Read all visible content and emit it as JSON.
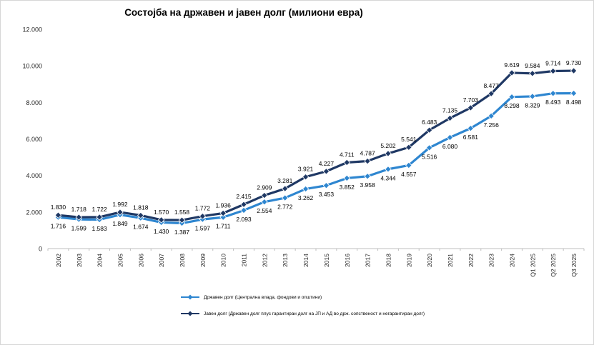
{
  "title": "Состојба на државен и јавен долг (милиони евра)",
  "chart_data": {
    "type": "line",
    "categories": [
      "2002",
      "2003",
      "2004",
      "2005",
      "2006",
      "2007",
      "2008",
      "2009",
      "2010",
      "2011",
      "2012",
      "2013",
      "2014",
      "2015",
      "2016",
      "2017",
      "2018",
      "2019",
      "2020",
      "2021",
      "2022",
      "2023",
      "2024",
      "Q1 2025",
      "Q2 2025",
      "Q3 2025"
    ],
    "series": [
      {
        "name": "Државен долг (Централна влада, фондови и општини)",
        "color": "#2E86D0",
        "label_position": "below",
        "values": [
          1716,
          1599,
          1583,
          1849,
          1674,
          1430,
          1387,
          1597,
          1711,
          2093,
          2554,
          2772,
          3262,
          3453,
          3852,
          3958,
          4344,
          4557,
          5516,
          6080,
          6581,
          7256,
          8298,
          8329,
          8493,
          8498
        ],
        "labels": [
          "1.716",
          "1.599",
          "1.583",
          "1.849",
          "1.674",
          "1.430",
          "1.387",
          "1.597",
          "1.711",
          "2.093",
          "2.554",
          "2.772",
          "3.262",
          "3.453",
          "3.852",
          "3.958",
          "4.344",
          "4.557",
          "5.516",
          "6.080",
          "6.581",
          "7.256",
          "8.298",
          "8.329",
          "8.493",
          "8.498"
        ]
      },
      {
        "name": "Јавен долг (Државен долг плус гарантиран долг на ЈП и АД во држ. сопственост и негарантиран долг)",
        "color": "#1F3864",
        "label_position": "above",
        "values": [
          1830,
          1718,
          1722,
          1992,
          1818,
          1570,
          1558,
          1772,
          1936,
          2415,
          2909,
          3281,
          3921,
          4227,
          4711,
          4787,
          5202,
          5541,
          6483,
          7135,
          7703,
          8477,
          9619,
          9584,
          9714,
          9730
        ],
        "labels": [
          "1.830",
          "1.718",
          "1.722",
          "1.992",
          "1.818",
          "1.570",
          "1.558",
          "1.772",
          "1.936",
          "2.415",
          "2.909",
          "3.281",
          "3.921",
          "4.227",
          "4.711",
          "4.787",
          "5.202",
          "5.541",
          "6.483",
          "7.135",
          "7.703",
          "8.477",
          "9.619",
          "9.584",
          "9.714",
          "9.730"
        ]
      }
    ],
    "ylim": [
      0,
      12000
    ],
    "y_ticks": [
      0,
      2000,
      4000,
      6000,
      8000,
      10000,
      12000
    ],
    "y_tick_labels": [
      "0",
      "2.000",
      "4.000",
      "6.000",
      "8.000",
      "10.000",
      "12.000"
    ],
    "grid": false,
    "legend_position": "bottom",
    "axis_color": "#BFBFBF",
    "tick_label_color": "#262626",
    "data_label_color": "#000000"
  }
}
